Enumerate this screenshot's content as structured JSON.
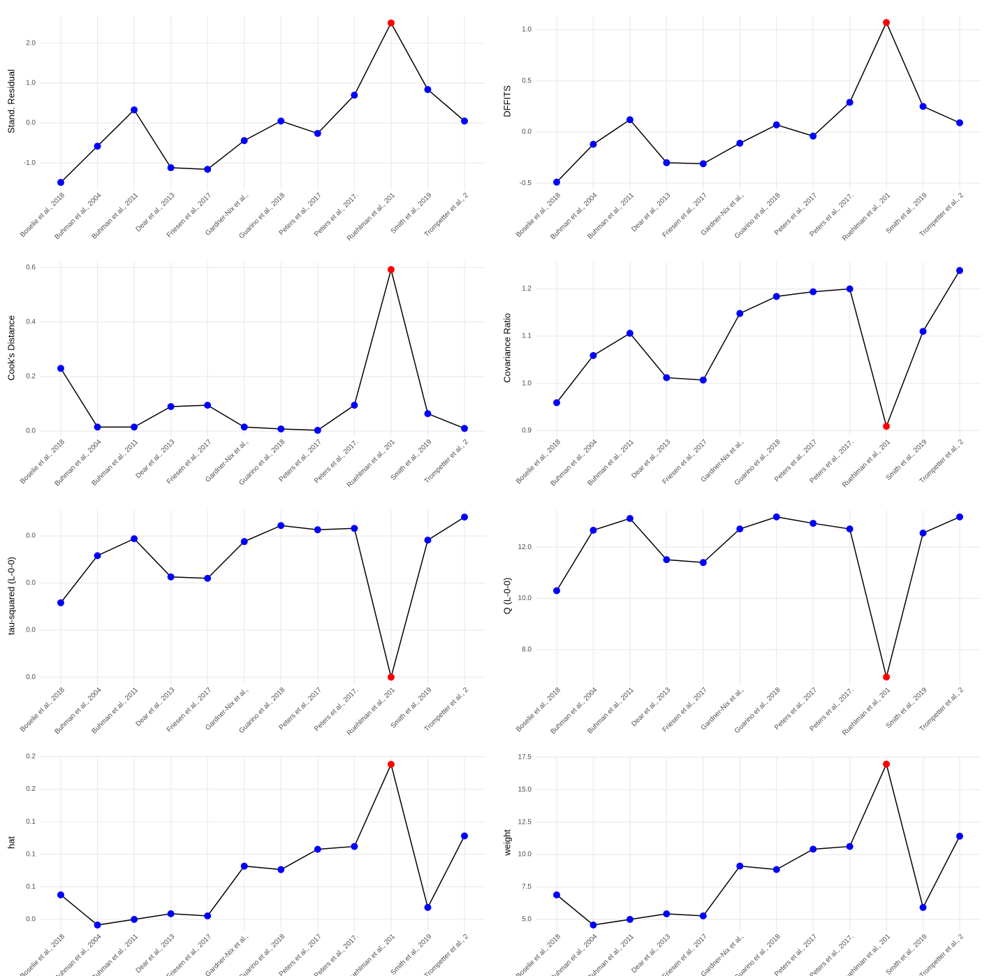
{
  "chart_data": [
    {
      "type": "line",
      "ylabel": "Stand. Residual",
      "categories": [
        "Boselie et al., 2018",
        "Buhman et al., 2004",
        "Buhman et al., 2011",
        "Dear et al., 2013",
        "Friesen et al., 2017",
        "Gardner-Nix et al.,",
        "Guarino et al., 2018",
        "Peters et al., 2017",
        "Peters et al., 2017.",
        "Ruehlman et al., 201",
        "Smith et al., 2019",
        "Trompetter et al., 2"
      ],
      "values": [
        -1.49,
        -0.58,
        0.33,
        -1.12,
        -1.16,
        -0.44,
        0.05,
        -0.26,
        0.7,
        2.51,
        0.84,
        0.05
      ],
      "colors": [
        "#0000ff",
        "#0000ff",
        "#0000ff",
        "#0000ff",
        "#0000ff",
        "#0000ff",
        "#0000ff",
        "#0000ff",
        "#0000ff",
        "#ff0000",
        "#0000ff",
        "#0000ff"
      ],
      "line_color": "#000000",
      "ylim": [
        -1.61,
        2.7
      ],
      "yticks": [
        {
          "value": -1,
          "label": "-1.0"
        },
        {
          "value": 0,
          "label": "0.0"
        },
        {
          "value": 1,
          "label": "1.0"
        },
        {
          "value": 2,
          "label": "2.0"
        }
      ],
      "grid": true
    },
    {
      "type": "line",
      "ylabel": "DFFITS",
      "categories": [
        "Boselie et al., 2018",
        "Buhman et al., 2004",
        "Buhman et al., 2011",
        "Dear et al., 2013",
        "Friesen et al., 2017",
        "Gardner-Nix et al.,",
        "Guarino et al., 2018",
        "Peters et al., 2017",
        "Peters et al., 2017.",
        "Ruehlman et al., 201",
        "Smith et al., 2019",
        "Trompetter et al., 2"
      ],
      "values": [
        -0.49,
        -0.12,
        0.12,
        -0.3,
        -0.31,
        -0.11,
        0.07,
        -0.04,
        0.29,
        1.07,
        0.25,
        0.09
      ],
      "colors": [
        "#0000ff",
        "#0000ff",
        "#0000ff",
        "#0000ff",
        "#0000ff",
        "#0000ff",
        "#0000ff",
        "#0000ff",
        "#0000ff",
        "#ff0000",
        "#0000ff",
        "#0000ff"
      ],
      "line_color": "#000000",
      "ylim": [
        -0.54,
        1.14
      ],
      "yticks": [
        {
          "value": -0.5,
          "label": "-0.5"
        },
        {
          "value": 0,
          "label": "0.0"
        },
        0.5,
        {
          "value": 1,
          "label": "1.0"
        }
      ],
      "grid": true
    },
    {
      "type": "line",
      "ylabel": "Cook's Distance",
      "categories": [
        "Boselie et al., 2018",
        "Buhman et al., 2004",
        "Buhman et al., 2011",
        "Dear et al., 2013",
        "Friesen et al., 2017",
        "Gardner-Nix et al.,",
        "Guarino et al., 2018",
        "Peters et al., 2017",
        "Peters et al., 2017.",
        "Ruehlman et al., 201",
        "Smith et al., 2019",
        "Trompetter et al., 2"
      ],
      "values": [
        0.23,
        0.015,
        0.015,
        0.09,
        0.095,
        0.015,
        0.008,
        0.003,
        0.095,
        0.592,
        0.064,
        0.01
      ],
      "colors": [
        "#0000ff",
        "#0000ff",
        "#0000ff",
        "#0000ff",
        "#0000ff",
        "#0000ff",
        "#0000ff",
        "#0000ff",
        "#0000ff",
        "#ff0000",
        "#0000ff",
        "#0000ff"
      ],
      "line_color": "#000000",
      "ylim": [
        -0.01,
        0.62
      ],
      "yticks": [
        {
          "value": 0,
          "label": "0.0"
        },
        0.2,
        0.4,
        0.6
      ],
      "grid": true
    },
    {
      "type": "line",
      "ylabel": "Covariance Ratio",
      "categories": [
        "Boselie et al., 2018",
        "Buhman et al., 2004",
        "Buhman et al., 2011",
        "Dear et al., 2013",
        "Friesen et al., 2017",
        "Gardner-Nix et al.,",
        "Guarino et al., 2018",
        "Peters et al., 2017",
        "Peters et al., 2017.",
        "Ruehlman et al., 201",
        "Smith et al., 2019",
        "Trompetter et al., 2"
      ],
      "values": [
        0.959,
        1.059,
        1.106,
        1.012,
        1.007,
        1.148,
        1.184,
        1.194,
        1.2,
        0.909,
        1.11,
        1.239
      ],
      "colors": [
        "#0000ff",
        "#0000ff",
        "#0000ff",
        "#0000ff",
        "#0000ff",
        "#0000ff",
        "#0000ff",
        "#0000ff",
        "#0000ff",
        "#ff0000",
        "#0000ff",
        "#0000ff"
      ],
      "line_color": "#000000",
      "ylim": [
        0.893,
        1.257
      ],
      "yticks": [
        0.9,
        {
          "value": 1,
          "label": "1.0"
        },
        1.1,
        1.2
      ],
      "grid": true
    },
    {
      "type": "line",
      "ylabel": "tau-squared (L-0-0)",
      "categories": [
        "Boselie et al., 2018",
        "Buhman et al., 2004",
        "Buhman et al., 2011",
        "Dear et al., 2013",
        "Friesen et al., 2017",
        "Gardner-Nix et al.,",
        "Guarino et al., 2018",
        "Peters et al., 2017",
        "Peters et al., 2017.",
        "Ruehlman et al., 201",
        "Smith et al., 2019",
        "Trompetter et al., 2"
      ],
      "values": [
        0.0158,
        0.0258,
        0.0294,
        0.0213,
        0.021,
        0.0288,
        0.0322,
        0.0313,
        0.0316,
        0.0,
        0.0291,
        0.034
      ],
      "colors": [
        "#0000ff",
        "#0000ff",
        "#0000ff",
        "#0000ff",
        "#0000ff",
        "#0000ff",
        "#0000ff",
        "#0000ff",
        "#0000ff",
        "#ff0000",
        "#0000ff",
        "#0000ff"
      ],
      "line_color": "#000000",
      "ylim": [
        -0.001,
        0.0355
      ],
      "yticks": [
        {
          "value": 0,
          "label": "0.0"
        },
        {
          "value": 0.01,
          "label": "0.0"
        },
        {
          "value": 0.02,
          "label": "0.0"
        },
        {
          "value": 0.03,
          "label": "0.0"
        }
      ],
      "grid": true
    },
    {
      "type": "line",
      "ylabel": "Q (L-0-0)",
      "categories": [
        "Boselie et al., 2018",
        "Buhman et al., 2004",
        "Buhman et al., 2011",
        "Dear et al., 2013",
        "Friesen et al., 2017",
        "Gardner-Nix et al.,",
        "Guarino et al., 2018",
        "Peters et al., 2017",
        "Peters et al., 2017.",
        "Ruehlman et al., 201",
        "Smith et al., 2019",
        "Trompetter et al., 2"
      ],
      "values": [
        10.3,
        12.66,
        13.12,
        11.51,
        11.4,
        12.71,
        13.18,
        12.93,
        12.71,
        6.93,
        12.55,
        13.18
      ],
      "colors": [
        "#0000ff",
        "#0000ff",
        "#0000ff",
        "#0000ff",
        "#0000ff",
        "#0000ff",
        "#0000ff",
        "#0000ff",
        "#0000ff",
        "#ff0000",
        "#0000ff",
        "#0000ff"
      ],
      "line_color": "#000000",
      "ylim": [
        6.74,
        13.45
      ],
      "yticks": [
        {
          "value": 8,
          "label": "8.0"
        },
        {
          "value": 10,
          "label": "10.0"
        },
        {
          "value": 12,
          "label": "12.0"
        }
      ],
      "grid": true
    },
    {
      "type": "line",
      "ylabel": "hat",
      "categories": [
        "Boselie et al., 2018",
        "Buhman et al., 2004",
        "Buhman et al., 2011",
        "Dear et al., 2013",
        "Friesen et al., 2017",
        "Gardner-Nix et al.,",
        "Guarino et al., 2018",
        "Peters et al., 2017",
        "Peters et al., 2017.",
        "Ruehlman et al., 201",
        "Smith et al., 2019",
        "Trompetter et al., 2"
      ],
      "values": [
        0.0626,
        0.0348,
        0.04,
        0.0452,
        0.0432,
        0.0891,
        0.0859,
        0.1046,
        0.1072,
        0.1829,
        0.051,
        0.1169
      ],
      "colors": [
        "#0000ff",
        "#0000ff",
        "#0000ff",
        "#0000ff",
        "#0000ff",
        "#0000ff",
        "#0000ff",
        "#0000ff",
        "#0000ff",
        "#ff0000",
        "#0000ff",
        "#0000ff"
      ],
      "line_color": "#000000",
      "ylim": [
        0.0316,
        0.19
      ],
      "yticks": [
        {
          "value": 0.04,
          "label": "0.0"
        },
        {
          "value": 0.07,
          "label": "0.1"
        },
        {
          "value": 0.1,
          "label": "0.1"
        },
        {
          "value": 0.13,
          "label": "0.1"
        },
        {
          "value": 0.16,
          "label": "0.2"
        },
        {
          "value": 0.19,
          "label": "0.2"
        }
      ],
      "grid": true
    },
    {
      "type": "line",
      "ylabel": "weight",
      "categories": [
        "Boselie et al., 2018",
        "Buhman et al., 2004",
        "Buhman et al., 2011",
        "Dear et al., 2013",
        "Friesen et al., 2017",
        "Gardner-Nix et al.,",
        "Guarino et al., 2018",
        "Peters et al., 2017",
        "Peters et al., 2017.",
        "Ruehlman et al., 201",
        "Smith et al., 2019",
        "Trompetter et al., 2"
      ],
      "values": [
        6.89,
        4.57,
        5.0,
        5.43,
        5.27,
        9.11,
        8.84,
        10.41,
        10.62,
        16.96,
        5.92,
        11.41
      ],
      "colors": [
        "#0000ff",
        "#0000ff",
        "#0000ff",
        "#0000ff",
        "#0000ff",
        "#0000ff",
        "#0000ff",
        "#0000ff",
        "#0000ff",
        "#ff0000",
        "#0000ff",
        "#0000ff"
      ],
      "line_color": "#000000",
      "ylim": [
        4.3,
        17.54
      ],
      "yticks": [
        {
          "value": 5,
          "label": "5.0"
        },
        7.5,
        {
          "value": 10,
          "label": "10.0"
        },
        12.5,
        {
          "value": 15,
          "label": "15.0"
        },
        17.5
      ],
      "grid": true
    }
  ]
}
